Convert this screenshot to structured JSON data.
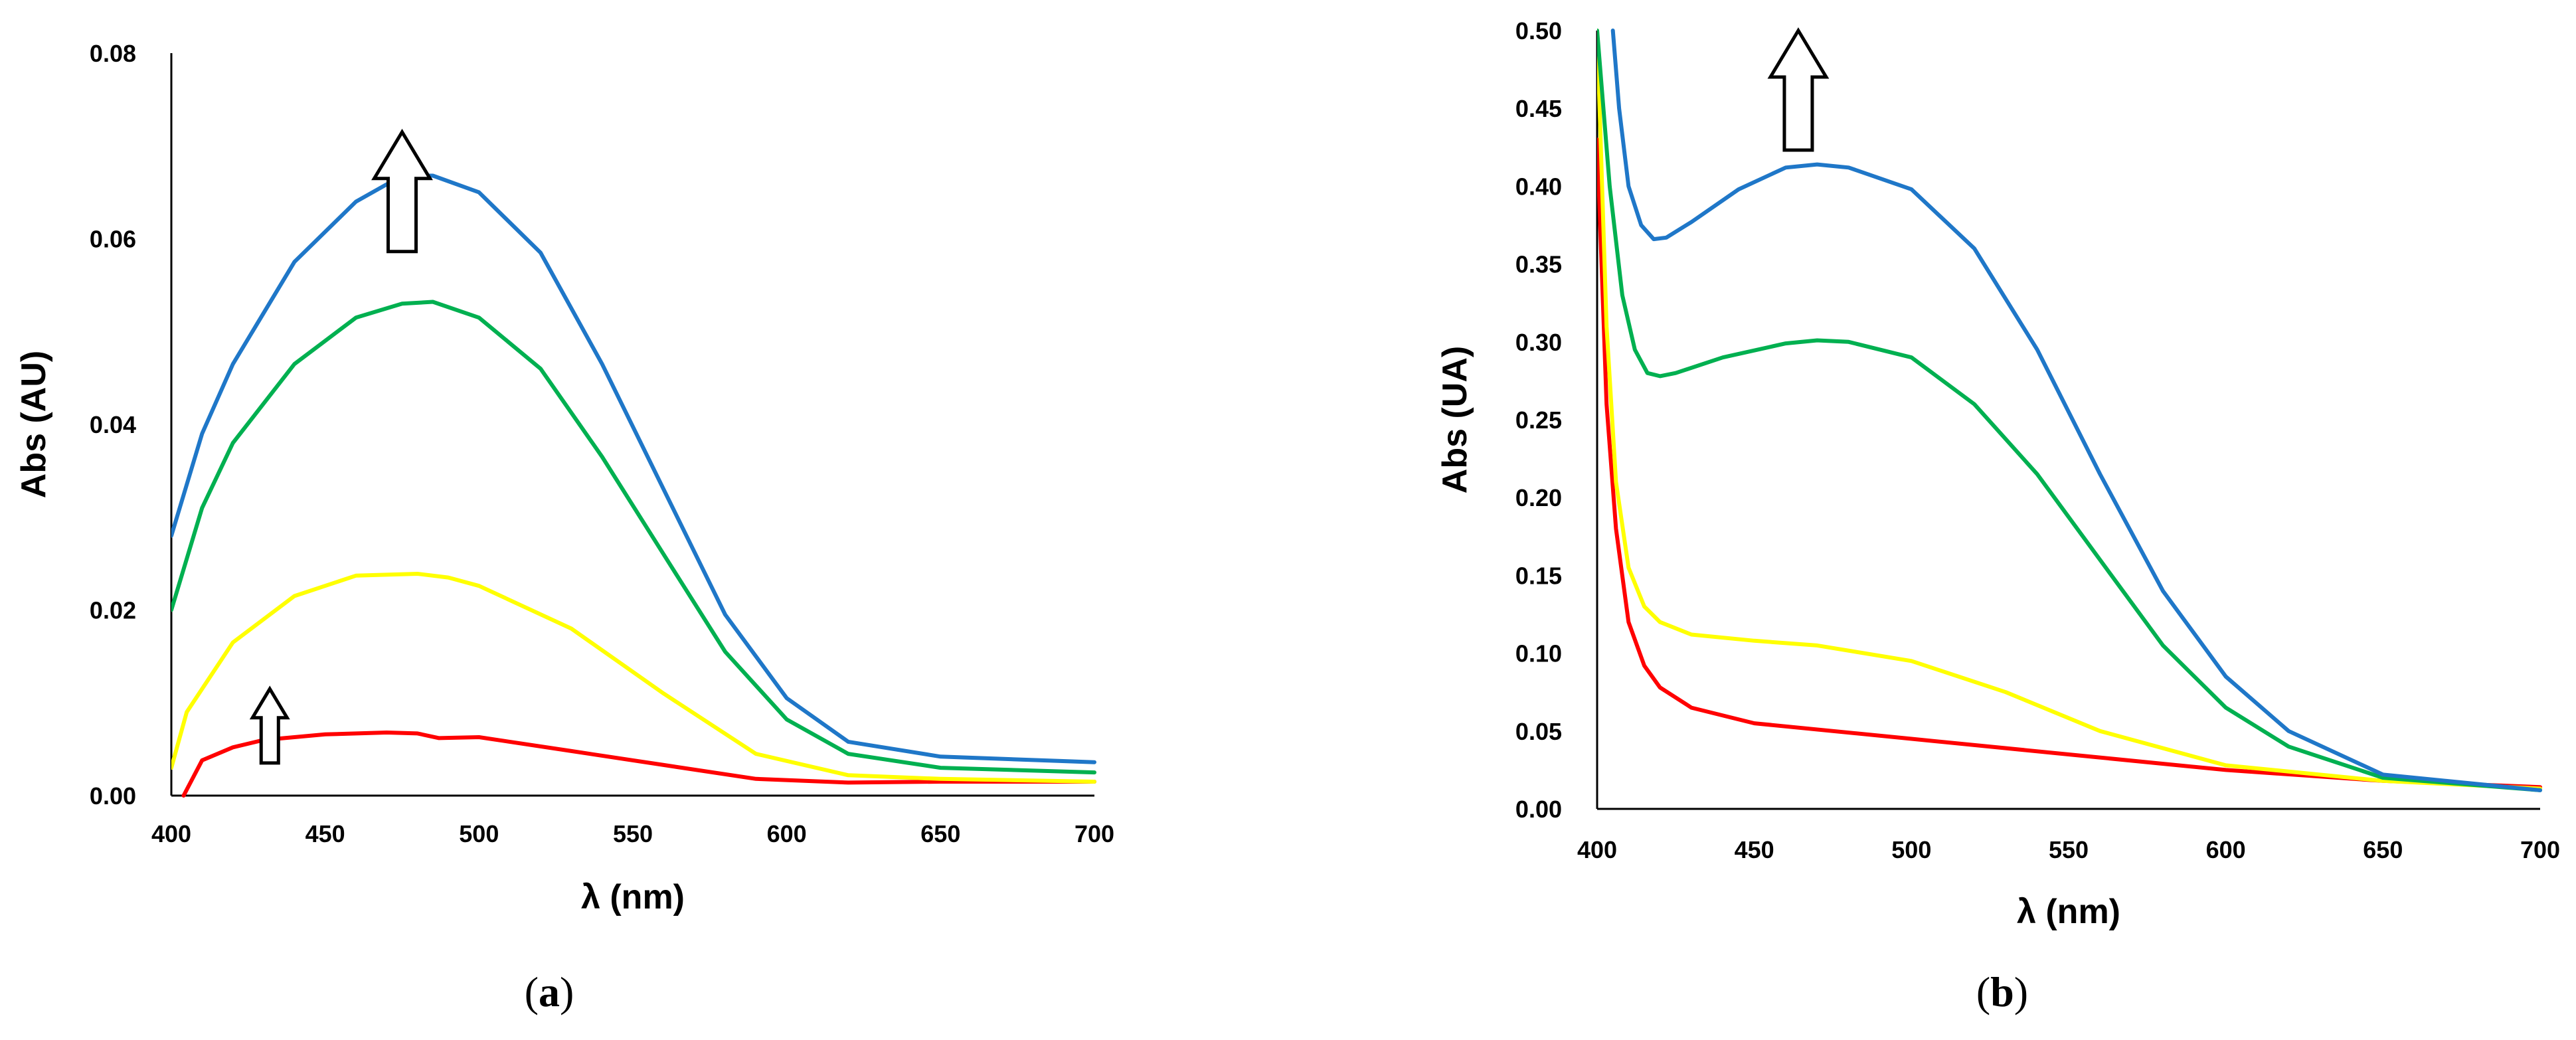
{
  "chart_data": [
    {
      "panel": "(a)",
      "caption": {
        "open": "(",
        "letter": "a",
        "close": ")"
      },
      "type": "line",
      "xlabel": "λ (nm)",
      "ylabel": "Abs (AU)",
      "xlim": [
        400,
        700
      ],
      "ylim": [
        0,
        0.08
      ],
      "xticks": [
        "400",
        "450",
        "500",
        "550",
        "600",
        "650",
        "700"
      ],
      "yticks": [
        "0.00",
        "0.02",
        "0.04",
        "0.06",
        "0.08"
      ],
      "grid": false,
      "legend": "none",
      "annotations": [
        {
          "type": "up-arrow",
          "x": 475,
          "y": 0.0715,
          "size": "large"
        },
        {
          "type": "up-arrow",
          "x": 432,
          "y": 0.0115,
          "size": "small"
        }
      ],
      "series": [
        {
          "name": "red",
          "color": "#ff0000",
          "x": [
            404,
            410,
            420,
            430,
            450,
            470,
            480,
            487,
            500,
            530,
            560,
            590,
            620,
            650,
            700
          ],
          "y": [
            0,
            0.0038,
            0.0052,
            0.006,
            0.0066,
            0.0068,
            0.0067,
            0.0062,
            0.0063,
            0.0048,
            0.0033,
            0.0018,
            0.0014,
            0.0015,
            0.0015
          ]
        },
        {
          "name": "yellow",
          "color": "#ffff00",
          "x": [
            400,
            405,
            420,
            440,
            460,
            480,
            490,
            500,
            530,
            560,
            590,
            620,
            650,
            700
          ],
          "y": [
            0.003,
            0.009,
            0.0165,
            0.0215,
            0.0237,
            0.0239,
            0.0235,
            0.0226,
            0.018,
            0.011,
            0.0045,
            0.0022,
            0.0018,
            0.0015
          ]
        },
        {
          "name": "green",
          "color": "#00b050",
          "x": [
            400,
            410,
            420,
            440,
            460,
            475,
            485,
            500,
            520,
            540,
            560,
            580,
            600,
            620,
            650,
            700
          ],
          "y": [
            0.02,
            0.031,
            0.038,
            0.0465,
            0.0515,
            0.053,
            0.0532,
            0.0515,
            0.046,
            0.0365,
            0.026,
            0.0155,
            0.0082,
            0.0045,
            0.003,
            0.0025
          ]
        },
        {
          "name": "blue",
          "color": "#1f77c8",
          "x": [
            400,
            410,
            420,
            440,
            460,
            475,
            485,
            500,
            520,
            540,
            560,
            580,
            600,
            620,
            650,
            700
          ],
          "y": [
            0.028,
            0.039,
            0.0465,
            0.0575,
            0.064,
            0.0668,
            0.0668,
            0.065,
            0.0585,
            0.0465,
            0.033,
            0.0195,
            0.0105,
            0.0058,
            0.0042,
            0.0036
          ]
        }
      ]
    },
    {
      "panel": "(b)",
      "caption": {
        "open": "(",
        "letter": "b",
        "close": ")"
      },
      "type": "line",
      "xlabel": "λ (nm)",
      "ylabel": "Abs (UA)",
      "xlim": [
        400,
        700
      ],
      "ylim": [
        0,
        0.5
      ],
      "xticks": [
        "400",
        "450",
        "500",
        "550",
        "600",
        "650",
        "700"
      ],
      "yticks": [
        "0.00",
        "0.05",
        "0.10",
        "0.15",
        "0.20",
        "0.25",
        "0.30",
        "0.35",
        "0.40",
        "0.45",
        "0.50"
      ],
      "grid": false,
      "legend": "none",
      "annotations": [
        {
          "type": "up-arrow",
          "x": 464,
          "y": 0.5,
          "size": "large"
        }
      ],
      "series": [
        {
          "name": "red",
          "color": "#ff0000",
          "x": [
            400,
            403,
            406,
            410,
            415,
            420,
            430,
            450,
            500,
            550,
            600,
            650,
            700
          ],
          "y": [
            0.43,
            0.26,
            0.18,
            0.12,
            0.092,
            0.078,
            0.065,
            0.055,
            0.045,
            0.035,
            0.025,
            0.018,
            0.014
          ]
        },
        {
          "name": "yellow",
          "color": "#ffff00",
          "x": [
            400,
            403,
            406,
            410,
            415,
            420,
            430,
            450,
            470,
            500,
            530,
            560,
            600,
            650,
            700
          ],
          "y": [
            0.5,
            0.31,
            0.21,
            0.155,
            0.13,
            0.12,
            0.112,
            0.108,
            0.105,
            0.095,
            0.075,
            0.05,
            0.028,
            0.018,
            0.013
          ]
        },
        {
          "name": "green",
          "color": "#00b050",
          "x": [
            400,
            404,
            408,
            412,
            416,
            420,
            425,
            440,
            460,
            470,
            480,
            500,
            520,
            540,
            560,
            580,
            600,
            620,
            650,
            700
          ],
          "y": [
            0.5,
            0.4,
            0.33,
            0.295,
            0.28,
            0.278,
            0.28,
            0.29,
            0.299,
            0.301,
            0.3,
            0.29,
            0.26,
            0.215,
            0.16,
            0.105,
            0.065,
            0.04,
            0.02,
            0.012
          ]
        },
        {
          "name": "blue",
          "color": "#1f77c8",
          "x": [
            405,
            407,
            410,
            414,
            418,
            422,
            430,
            445,
            460,
            470,
            480,
            500,
            520,
            540,
            560,
            580,
            600,
            620,
            650,
            700
          ],
          "y": [
            0.5,
            0.45,
            0.4,
            0.375,
            0.366,
            0.367,
            0.377,
            0.398,
            0.412,
            0.414,
            0.412,
            0.398,
            0.36,
            0.295,
            0.215,
            0.14,
            0.085,
            0.05,
            0.022,
            0.012
          ]
        }
      ]
    }
  ]
}
